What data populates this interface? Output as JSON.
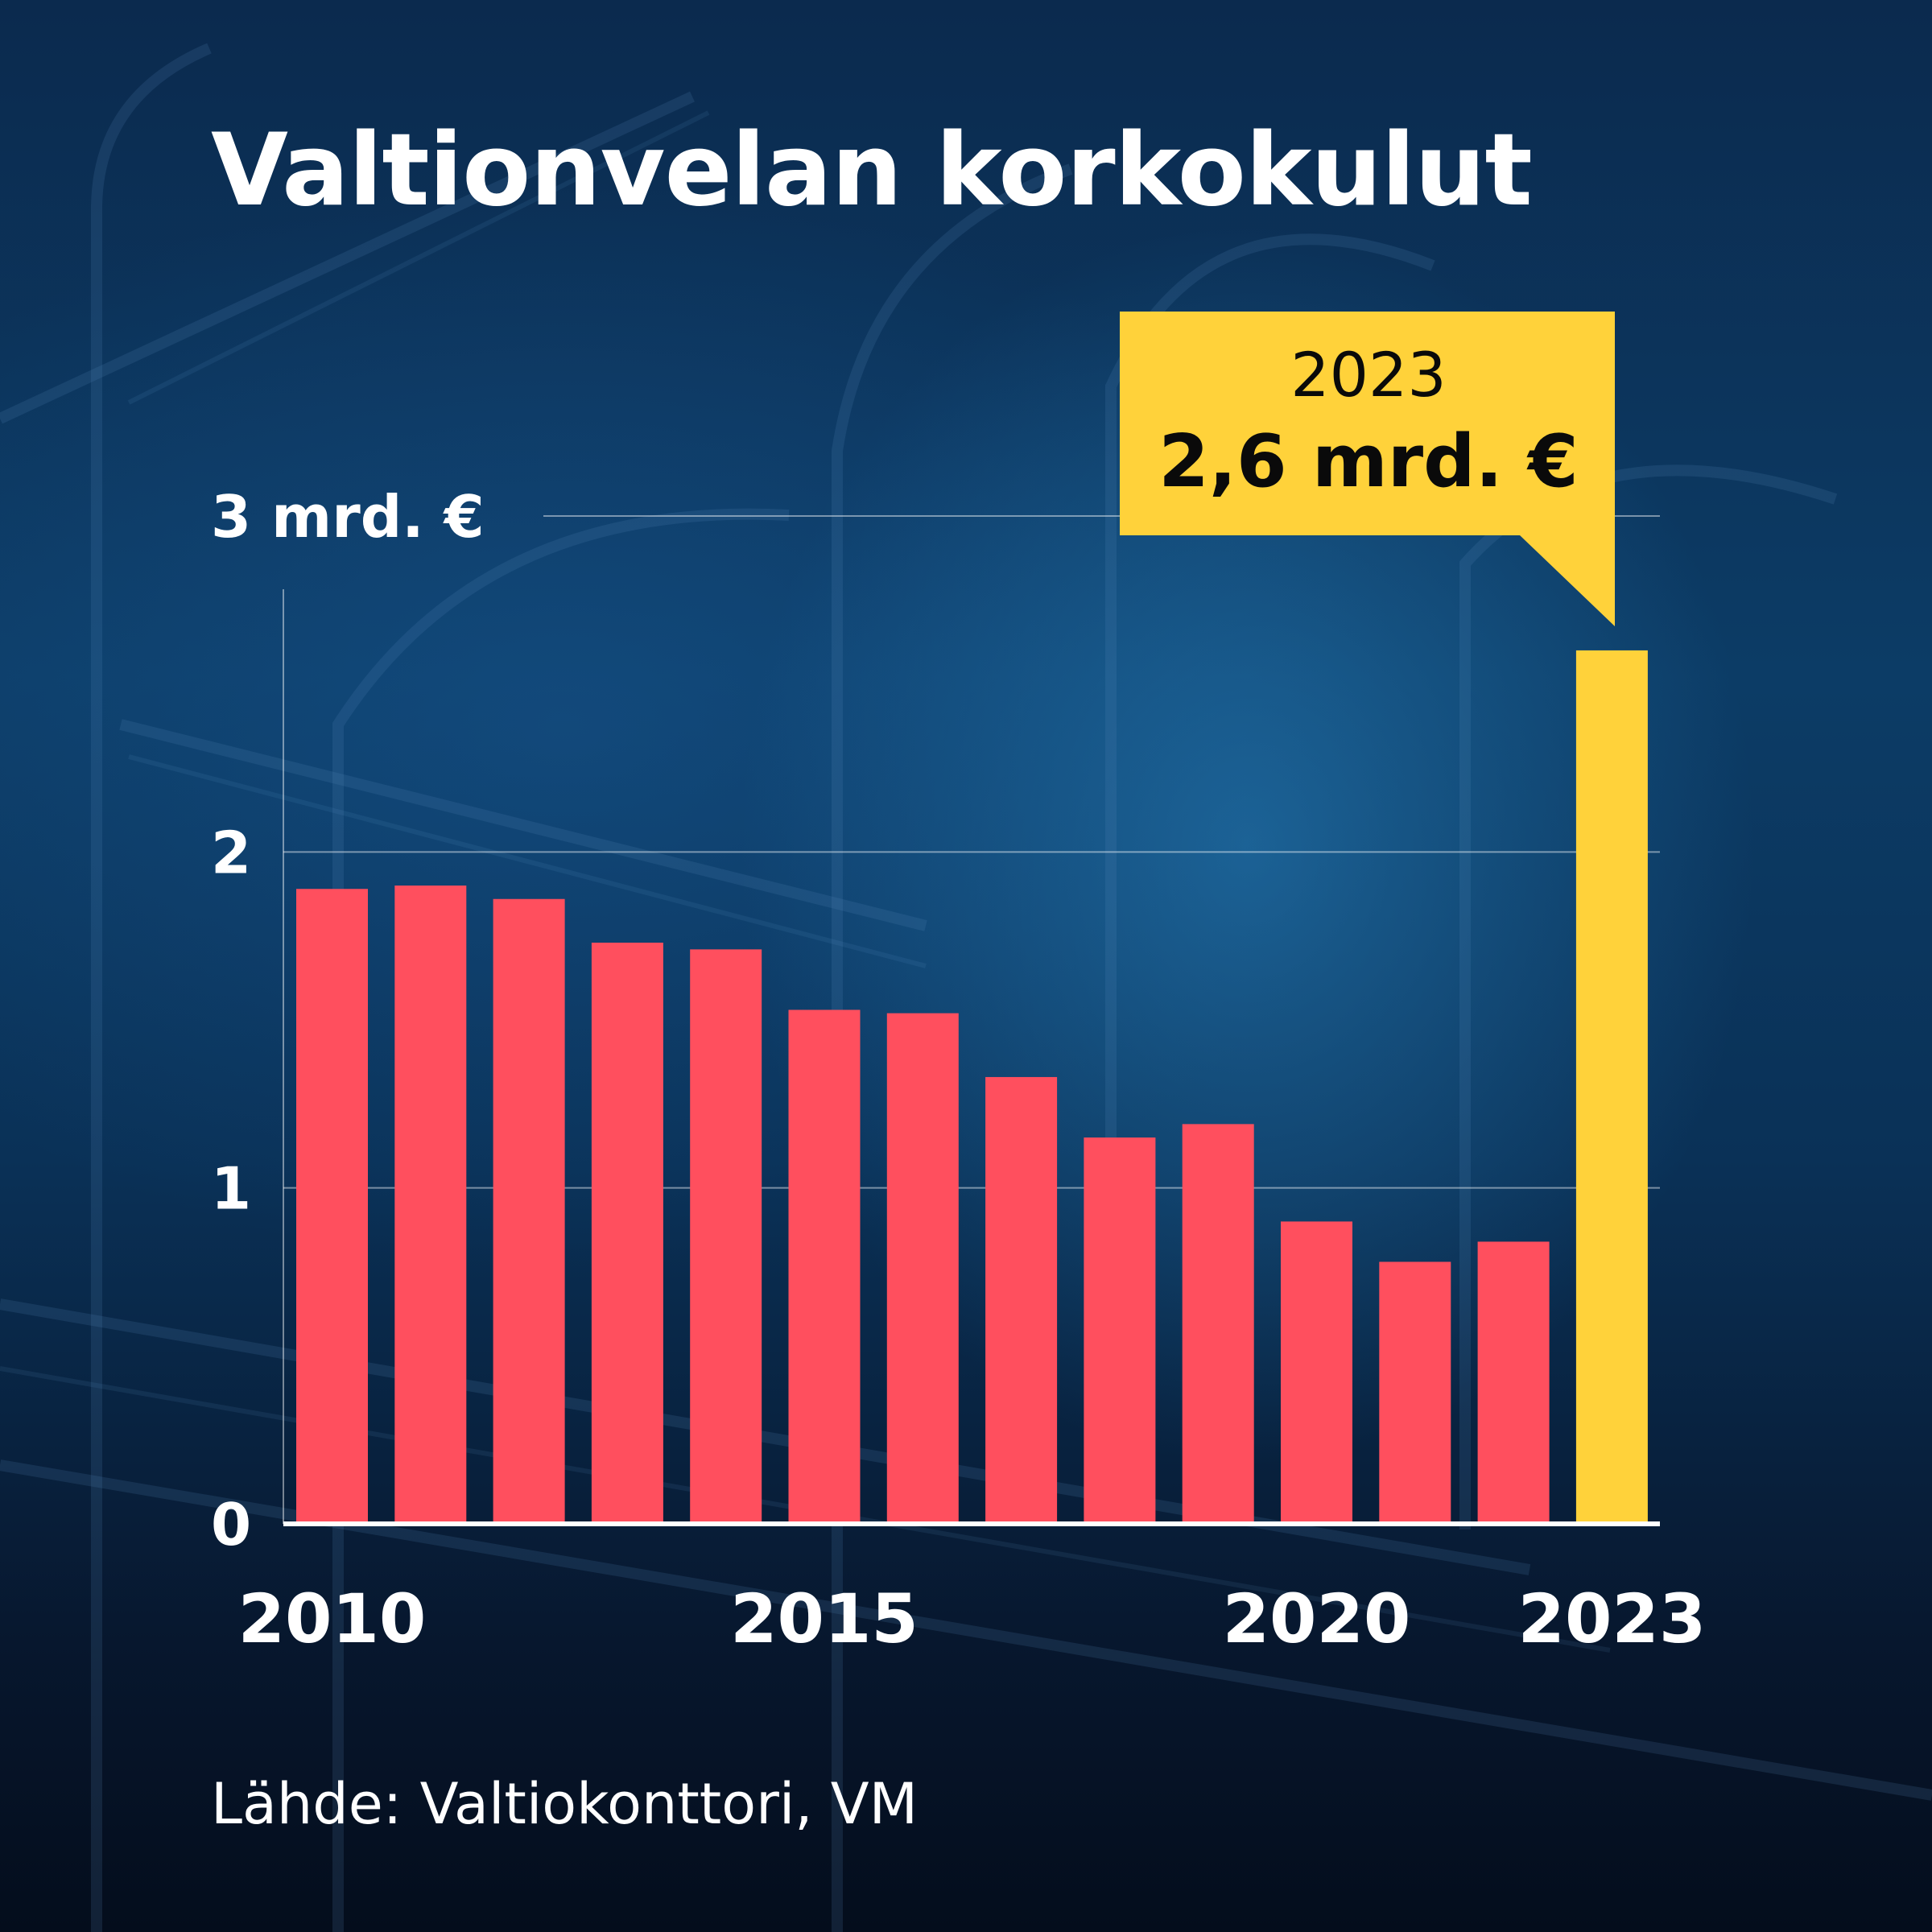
{
  "title": "Valtionvelan korkokulut",
  "source": "Lähde: Valtiokonttori, VM",
  "colors": {
    "bar": "#ff4f5e",
    "highlight": "#ffd23a",
    "text": "#ffffff",
    "callout_text": "#0a0a0a"
  },
  "callout": {
    "year": "2023",
    "value": "2,6 mrd. €"
  },
  "chart_data": {
    "type": "bar",
    "title": "Valtionvelan korkokulut",
    "xlabel": "",
    "ylabel": "",
    "categories": [
      "2010",
      "2011",
      "2012",
      "2013",
      "2014",
      "2015",
      "2016",
      "2017",
      "2018",
      "2019",
      "2020",
      "2021",
      "2022",
      "2023"
    ],
    "values": [
      1.89,
      1.9,
      1.86,
      1.73,
      1.71,
      1.53,
      1.52,
      1.33,
      1.15,
      1.19,
      0.9,
      0.78,
      0.84,
      2.6
    ],
    "highlight_category": "2023",
    "ylim": [
      0,
      3
    ],
    "yticks": [
      {
        "value": 0,
        "label": "0"
      },
      {
        "value": 1,
        "label": "1"
      },
      {
        "value": 2,
        "label": "2"
      },
      {
        "value": 3,
        "label": "3 mrd. €"
      }
    ],
    "xtick_labels": [
      "2010",
      "2015",
      "2020",
      "2023"
    ],
    "grid": true,
    "legend": "none"
  }
}
